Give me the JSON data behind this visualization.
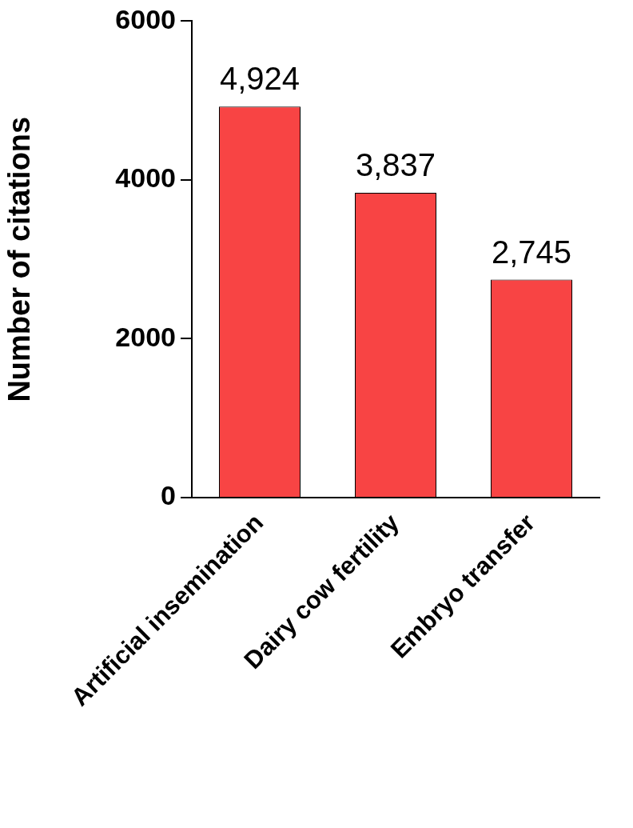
{
  "chart_data": {
    "type": "bar",
    "ylabel": "Number of citations",
    "categories": [
      "Artificial insemination",
      "Dairy cow fertility",
      "Embryo transfer"
    ],
    "values": [
      4924,
      3837,
      2745
    ],
    "value_labels": [
      "4,924",
      "3,837",
      "2,745"
    ],
    "color": "#f84444",
    "ylim": [
      0,
      6000
    ],
    "yticks": [
      0,
      2000,
      4000,
      6000
    ],
    "grid": false,
    "legend": false
  }
}
